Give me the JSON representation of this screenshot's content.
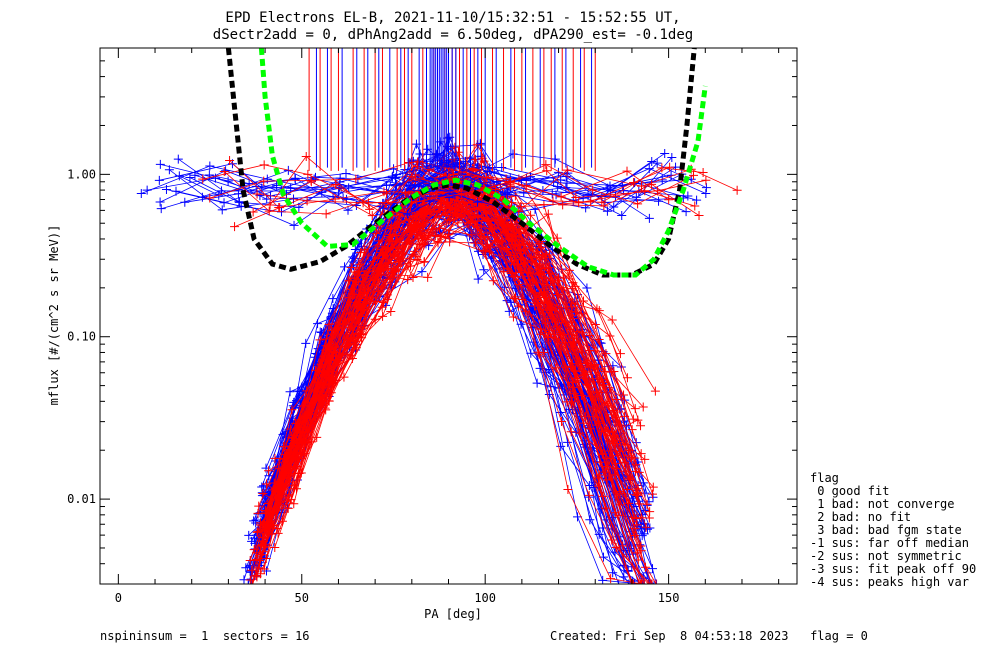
{
  "chart_data": {
    "type": "scatter",
    "title": "EPD Electrons EL-B, 2021-11-10/15:32:51 - 15:52:55 UT,",
    "subtitle": "dSectr2add = 0, dPhAng2add = 6.50deg, dPA290_est=  -0.1deg",
    "xlabel": "PA [deg]",
    "ylabel": "mflux [#/(cm^2 s sr MeV)]",
    "xlim": [
      -5,
      185
    ],
    "ylim": [
      0.003,
      6.0
    ],
    "yscale": "log",
    "xticks": [
      0,
      50,
      100,
      150
    ],
    "yticks": [
      {
        "value": 0.01,
        "label": "0.01"
      },
      {
        "value": 0.1,
        "label": "0.10"
      },
      {
        "value": 1.0,
        "label": "1.00"
      }
    ],
    "grid": false,
    "colors": {
      "red": "#ff0000",
      "blue": "#0000ff",
      "black": "#000000",
      "green": "#00ff00"
    },
    "series": [
      {
        "kind": "loss-cone-fit",
        "color": "#0000ff",
        "center": 90,
        "peak": 0.85,
        "floor": 0.004,
        "pa_min": 36,
        "pa_max": 145,
        "spread": 6,
        "count": 90
      },
      {
        "kind": "loss-cone-fit",
        "color": "#ff0000",
        "center": 93,
        "peak": 0.78,
        "floor": 0.004,
        "pa_min": 37,
        "pa_max": 145,
        "spread": 6,
        "count": 70
      },
      {
        "kind": "flat-trapped",
        "color": "#0000ff",
        "level": 0.85,
        "pa_min": 5,
        "pa_max": 165,
        "count": 16
      },
      {
        "kind": "flat-trapped",
        "color": "#ff0000",
        "level": 0.8,
        "pa_min": 20,
        "pa_max": 170,
        "count": 8
      }
    ],
    "fits": [
      {
        "name": "",
        "color": "#000000",
        "style": "dashed",
        "points": [
          [
            30,
            6.0
          ],
          [
            32,
            2.2
          ],
          [
            34,
            0.8
          ],
          [
            37,
            0.4
          ],
          [
            42,
            0.28
          ],
          [
            47,
            0.26
          ],
          [
            55,
            0.29
          ],
          [
            62,
            0.36
          ],
          [
            70,
            0.5
          ],
          [
            78,
            0.68
          ],
          [
            85,
            0.82
          ],
          [
            90,
            0.86
          ],
          [
            95,
            0.82
          ],
          [
            102,
            0.68
          ],
          [
            110,
            0.5
          ],
          [
            118,
            0.36
          ],
          [
            125,
            0.28
          ],
          [
            132,
            0.24
          ],
          [
            140,
            0.24
          ],
          [
            146,
            0.28
          ],
          [
            150,
            0.4
          ],
          [
            153,
            0.8
          ],
          [
            155,
            2.0
          ],
          [
            157,
            6.0
          ]
        ]
      },
      {
        "name": "",
        "color": "#00ff00",
        "style": "dashed",
        "points": [
          [
            39,
            6.0
          ],
          [
            40,
            3.0
          ],
          [
            42,
            1.3
          ],
          [
            45,
            0.75
          ],
          [
            50,
            0.5
          ],
          [
            57,
            0.36
          ],
          [
            64,
            0.37
          ],
          [
            72,
            0.52
          ],
          [
            80,
            0.72
          ],
          [
            86,
            0.86
          ],
          [
            92,
            0.92
          ],
          [
            98,
            0.86
          ],
          [
            105,
            0.7
          ],
          [
            112,
            0.5
          ],
          [
            120,
            0.36
          ],
          [
            128,
            0.27
          ],
          [
            135,
            0.24
          ],
          [
            141,
            0.24
          ],
          [
            146,
            0.3
          ],
          [
            150,
            0.45
          ],
          [
            154,
            0.8
          ],
          [
            158,
            1.6
          ],
          [
            160,
            3.5
          ]
        ]
      }
    ],
    "spikes": [
      {
        "color": "#ff0000",
        "x": [
          52,
          55,
          58,
          60,
          64,
          67,
          70,
          72,
          76,
          78,
          80,
          83,
          86,
          89,
          90,
          91,
          92,
          93,
          95,
          97,
          99,
          102,
          105,
          108,
          110,
          113,
          116,
          118,
          121,
          124,
          127,
          130
        ],
        "top": 6.0,
        "bottom": 1.05
      },
      {
        "color": "#0000ff",
        "x": [
          54,
          57,
          61,
          65,
          68,
          71,
          74,
          77,
          79,
          82,
          84,
          85,
          85.5,
          86,
          86.5,
          87,
          87.5,
          88,
          88.5,
          89,
          89.5,
          90,
          91,
          92,
          94,
          96,
          98,
          100,
          103,
          107,
          111,
          115,
          119,
          122,
          126,
          129
        ],
        "top": 6.0,
        "bottom": 1.1
      }
    ]
  },
  "legend": {
    "title": "flag",
    "items": [
      " 0 good fit",
      " 1 bad: not converge",
      " 2 bad: no fit",
      " 3 bad: bad fgm state",
      "-1 sus: far off median",
      "-2 sus: not symmetric",
      "-3 sus: fit peak off 90",
      "-4 sus: peaks high var"
    ]
  },
  "footer": {
    "left": "nspininsum =  1  sectors = 16",
    "right": "Created: Fri Sep  8 04:53:18 2023   flag = 0"
  }
}
